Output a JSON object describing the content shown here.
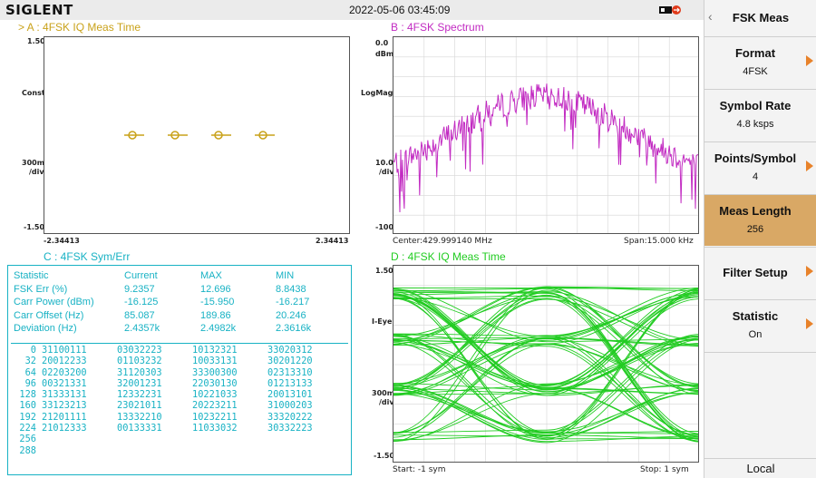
{
  "brand": "SIGLENT",
  "datetime": "2022-05-06 03:45:09",
  "colors": {
    "gold": "#c9a21a",
    "magenta": "#c22bc2",
    "cyan": "#18b2c4",
    "green": "#22cc22",
    "orange": "#e8822a",
    "active": "#d9a865"
  },
  "panel_a": {
    "title": "> A :  4FSK  IQ Meas Time",
    "y_top": "1.50",
    "y_label1": "Const",
    "y_label2": "300m",
    "y_label3": "/div",
    "y_bottom": "-1.50",
    "x_left": "-2.34413",
    "x_right": "2.34413"
  },
  "panel_b": {
    "title": "B :  4FSK  Spectrum",
    "y_top": "0.0",
    "y_unit": "dBm",
    "y_label1": "LogMag",
    "y_label2": "10.0",
    "y_label3": "/div",
    "y_bottom": "-100",
    "center": "Center:429.999140 MHz",
    "span": "Span:15.000 kHz"
  },
  "panel_c": {
    "title": "C :  4FSK  Sym/Err",
    "headers": [
      "Statistic",
      "Current",
      "MAX",
      "MIN"
    ],
    "rows": [
      [
        "FSK Err (%)",
        "9.2357",
        "12.696",
        "8.8438"
      ],
      [
        "Carr Power (dBm)",
        "-16.125",
        "-15.950",
        "-16.217"
      ],
      [
        "Carr Offset (Hz)",
        "85.087",
        "189.86",
        "20.246"
      ],
      [
        "Deviation (Hz)",
        "2.4357k",
        "2.4982k",
        "2.3616k"
      ]
    ],
    "symbols": [
      [
        "0",
        "31100111",
        "03032223",
        "10132321",
        "33020312"
      ],
      [
        "32",
        "20012233",
        "01103232",
        "10033131",
        "30201220"
      ],
      [
        "64",
        "02203200",
        "31120303",
        "33300300",
        "02313310"
      ],
      [
        "96",
        "00321331",
        "32001231",
        "22030130",
        "01213133"
      ],
      [
        "128",
        "31333131",
        "12332231",
        "10221033",
        "20013101"
      ],
      [
        "160",
        "33123213",
        "23021011",
        "20223211",
        "31000203"
      ],
      [
        "192",
        "21201111",
        "13332210",
        "10232211",
        "33320222"
      ],
      [
        "224",
        "21012333",
        "00133331",
        "11033032",
        "30332223"
      ],
      [
        "256",
        "",
        "",
        "",
        ""
      ],
      [
        "288",
        "",
        "",
        "",
        ""
      ]
    ]
  },
  "panel_d": {
    "title": "D :  4FSK  IQ Meas Time",
    "y_top": "1.50",
    "y_label1": "I-Eye",
    "y_label2": "300m",
    "y_label3": "/div",
    "y_bottom": "-1.50",
    "start": "Start: -1 sym",
    "stop": "Stop: 1 sym"
  },
  "menu": {
    "title": "FSK Meas",
    "keys": [
      {
        "label": "Format",
        "value": "4FSK"
      },
      {
        "label": "Symbol Rate",
        "value": "4.8 ksps"
      },
      {
        "label": "Points/Symbol",
        "value": "4"
      },
      {
        "label": "Meas Length",
        "value": "256"
      },
      {
        "label": "Filter Setup",
        "value": ""
      },
      {
        "label": "Statistic",
        "value": "On"
      }
    ],
    "status": "Local"
  }
}
